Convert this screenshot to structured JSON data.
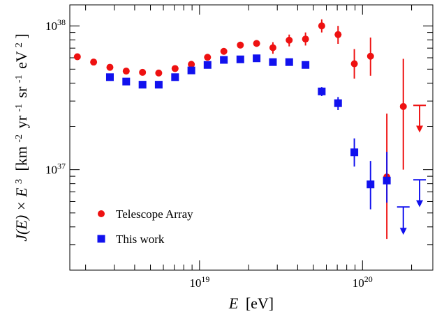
{
  "chart_data": {
    "type": "scatter",
    "x_scale": "log",
    "y_scale": "log",
    "xlim": [
      1.6e+18,
      2.7e+20
    ],
    "ylim": [
      2e+36,
      1.4e+38
    ],
    "grid": false,
    "legend_position": "bottom-left",
    "xlabel": {
      "symbol": "E",
      "unit": "[eV]"
    },
    "ylabel": {
      "lhs": "J(E) × E",
      "lhs_exp": "3",
      "unit": "[km",
      "unit_exp1": "-2",
      "unit_yr": "yr",
      "unit_exp2": "-1",
      "unit_sr": "sr",
      "unit_exp3": "-1",
      "unit_ev": "eV",
      "unit_exp4": "2",
      "close": "]"
    },
    "x_tick_labels": [
      {
        "value": 1e+19,
        "base": "10",
        "exp": "19"
      },
      {
        "value": 1e+20,
        "base": "10",
        "exp": "20"
      }
    ],
    "y_tick_labels": [
      {
        "value": 1e+37,
        "base": "10",
        "exp": "37"
      },
      {
        "value": 1e+38,
        "base": "10",
        "exp": "38"
      }
    ],
    "series": [
      {
        "name": "Telescope Array",
        "color": "#ee1111",
        "marker": "circle",
        "points": [
          {
            "x": 1.78e+18,
            "y": 6.1e+37
          },
          {
            "x": 2.24e+18,
            "y": 5.6e+37
          },
          {
            "x": 2.82e+18,
            "y": 5.15e+37
          },
          {
            "x": 3.55e+18,
            "y": 4.85e+37
          },
          {
            "x": 4.47e+18,
            "y": 4.75e+37
          },
          {
            "x": 5.62e+18,
            "y": 4.7e+37
          },
          {
            "x": 7.08e+18,
            "y": 5.05e+37
          },
          {
            "x": 8.91e+18,
            "y": 5.4e+37
          },
          {
            "x": 1.12e+19,
            "y": 6.05e+37
          },
          {
            "x": 1.41e+19,
            "y": 6.65e+37
          },
          {
            "x": 1.78e+19,
            "y": 7.35e+37,
            "ylo": 7e+37,
            "yhi": 7.7e+37
          },
          {
            "x": 2.24e+19,
            "y": 7.55e+37,
            "ylo": 7.2e+37,
            "yhi": 7.9e+37
          },
          {
            "x": 2.82e+19,
            "y": 7.05e+37,
            "ylo": 6.4e+37,
            "yhi": 7.7e+37
          },
          {
            "x": 3.55e+19,
            "y": 7.95e+37,
            "ylo": 7.2e+37,
            "yhi": 8.7e+37
          },
          {
            "x": 4.47e+19,
            "y": 8.1e+37,
            "ylo": 7.3e+37,
            "yhi": 9e+37
          },
          {
            "x": 5.62e+19,
            "y": 1e+38,
            "ylo": 9e+37,
            "yhi": 1.11e+38
          },
          {
            "x": 7.08e+19,
            "y": 8.7e+37,
            "ylo": 7.5e+37,
            "yhi": 1e+38
          },
          {
            "x": 8.91e+19,
            "y": 5.45e+37,
            "ylo": 4.3e+37,
            "yhi": 6.9e+37
          },
          {
            "x": 1.12e+20,
            "y": 6.15e+37,
            "ylo": 4.5e+37,
            "yhi": 8.3e+37
          },
          {
            "x": 1.41e+20,
            "y": 8.9e+36,
            "ylo": 3.3e+36,
            "yhi": 2.45e+37
          },
          {
            "x": 1.78e+20,
            "y": 2.75e+37,
            "ylo": 1e+37,
            "yhi": 5.9e+37
          }
        ],
        "upper_limits": [
          {
            "x": 2.24e+20,
            "y": 2.8e+37,
            "arrow_to": 1.85e+37
          }
        ]
      },
      {
        "name": "This work",
        "color": "#1111ee",
        "marker": "square",
        "points": [
          {
            "x": 2.82e+18,
            "y": 4.4e+37
          },
          {
            "x": 3.55e+18,
            "y": 4.1e+37
          },
          {
            "x": 4.47e+18,
            "y": 3.9e+37
          },
          {
            "x": 5.62e+18,
            "y": 3.9e+37
          },
          {
            "x": 7.08e+18,
            "y": 4.4e+37
          },
          {
            "x": 8.91e+18,
            "y": 4.9e+37
          },
          {
            "x": 1.12e+19,
            "y": 5.35e+37
          },
          {
            "x": 1.41e+19,
            "y": 5.8e+37
          },
          {
            "x": 1.78e+19,
            "y": 5.85e+37
          },
          {
            "x": 2.24e+19,
            "y": 5.95e+37
          },
          {
            "x": 2.82e+19,
            "y": 5.6e+37
          },
          {
            "x": 3.55e+19,
            "y": 5.6e+37
          },
          {
            "x": 4.47e+19,
            "y": 5.35e+37
          },
          {
            "x": 5.62e+19,
            "y": 3.5e+37,
            "ylo": 3.25e+37,
            "yhi": 3.75e+37
          },
          {
            "x": 7.08e+19,
            "y": 2.9e+37,
            "ylo": 2.6e+37,
            "yhi": 3.2e+37
          },
          {
            "x": 8.91e+19,
            "y": 1.32e+37,
            "ylo": 1.05e+37,
            "yhi": 1.65e+37
          },
          {
            "x": 1.12e+20,
            "y": 7.9e+36,
            "ylo": 5.3e+36,
            "yhi": 1.15e+37
          },
          {
            "x": 1.41e+20,
            "y": 8.4e+36,
            "ylo": 5.9e+36,
            "yhi": 1.33e+37
          }
        ],
        "upper_limits": [
          {
            "x": 1.78e+20,
            "y": 5.5e+36,
            "arrow_to": 3.6e+36
          },
          {
            "x": 2.24e+20,
            "y": 8.5e+36,
            "arrow_to": 5.6e+36
          }
        ]
      }
    ]
  }
}
